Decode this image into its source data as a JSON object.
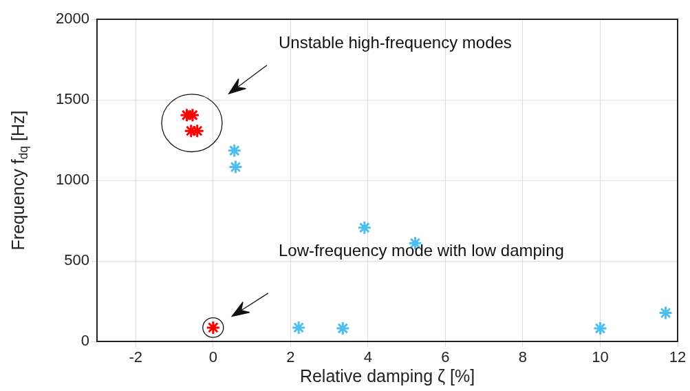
{
  "chart_data": {
    "type": "scatter",
    "xlabel": "Relative damping ζ [%]",
    "ylabel": "Frequency f$_{dq}$ [Hz]",
    "xlim": [
      -3,
      12
    ],
    "xticks": [
      -2,
      0,
      2,
      4,
      6,
      8,
      10,
      12
    ],
    "ylim": [
      0,
      2000
    ],
    "yticks": [
      0,
      500,
      1000,
      1500,
      2000
    ],
    "grid": true,
    "marker": "cross",
    "legend": false,
    "series": [
      {
        "color": "#ff0000",
        "x": [
          -0.68,
          -0.53,
          -0.57,
          -0.41,
          0
        ],
        "values": [
          1405,
          1405,
          1307,
          1307,
          86
        ]
      },
      {
        "color": "#4dbeee",
        "x": [
          0.55,
          0.58,
          2.21,
          3.35,
          3.91,
          5.22,
          10.0,
          11.69
        ],
        "values": [
          1185,
          1083,
          86,
          81,
          706,
          610,
          81,
          177
        ]
      }
    ],
    "annotations": [
      "Unstable high-frequency modes",
      "Low-frequency mode with low damping"
    ]
  }
}
